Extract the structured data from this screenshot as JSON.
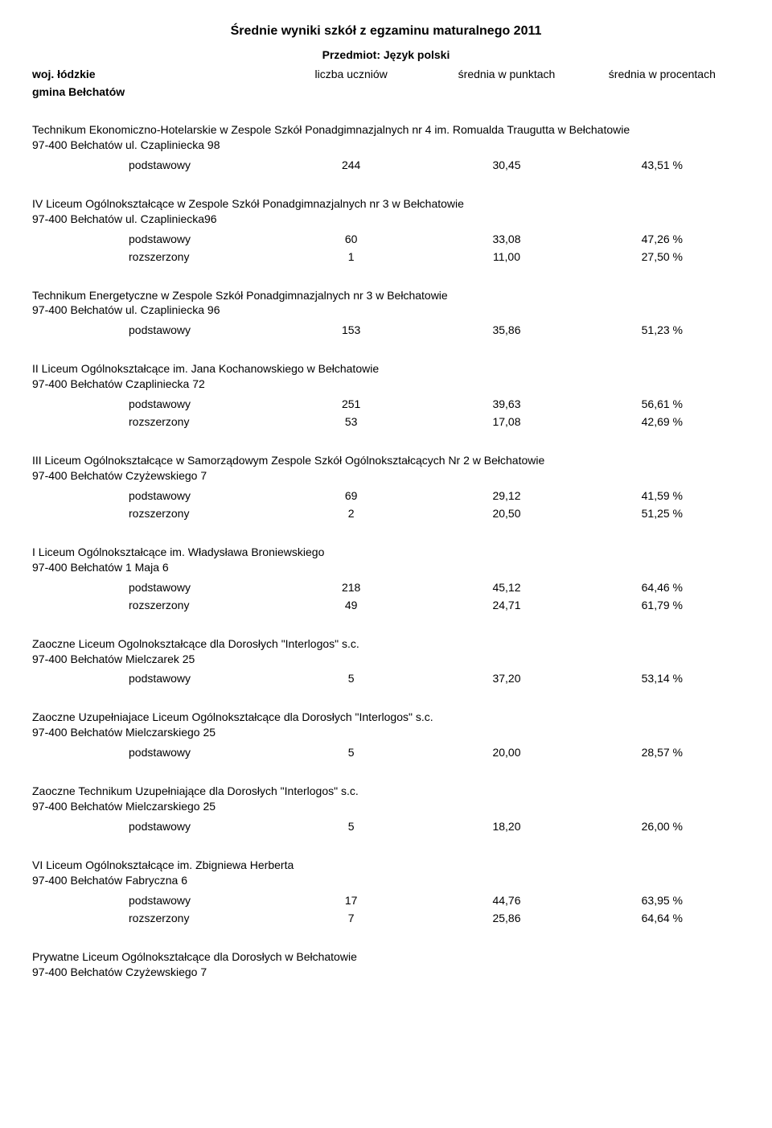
{
  "title": "Średnie wyniki szkół z egzaminu maturalnego 2011",
  "subject_label": "Przedmiot: Język polski",
  "region": "woj. łódzkie",
  "columns": {
    "students": "liczba uczniów",
    "avg_points": "średnia w punktach",
    "avg_percent": "średnia w procentach"
  },
  "gmina": "gmina Bełchatów",
  "level_labels": {
    "podstawowy": "podstawowy",
    "rozszerzony": "rozszerzony"
  },
  "schools": [
    {
      "name": "Technikum Ekonomiczno-Hotelarskie w Zespole Szkół Ponadgimnazjalnych nr 4 im. Romualda Traugutta w Bełchatowie",
      "address": "97-400 Bełchatów ul. Czapliniecka 98",
      "rows": [
        {
          "level": "podstawowy",
          "students": "244",
          "avg_points": "30,45",
          "avg_percent": "43,51 %"
        }
      ]
    },
    {
      "name": "IV Liceum Ogólnokształcące w Zespole Szkół Ponadgimnazjalnych nr 3 w Bełchatowie",
      "address": "97-400 Bełchatów ul. Czapliniecka96",
      "rows": [
        {
          "level": "podstawowy",
          "students": "60",
          "avg_points": "33,08",
          "avg_percent": "47,26 %"
        },
        {
          "level": "rozszerzony",
          "students": "1",
          "avg_points": "11,00",
          "avg_percent": "27,50 %"
        }
      ]
    },
    {
      "name": "Technikum Energetyczne w Zespole Szkół Ponadgimnazjalnych nr 3 w Bełchatowie",
      "address": "97-400 Bełchatów ul. Czapliniecka 96",
      "rows": [
        {
          "level": "podstawowy",
          "students": "153",
          "avg_points": "35,86",
          "avg_percent": "51,23 %"
        }
      ]
    },
    {
      "name": "II Liceum Ogólnokształcące im. Jana Kochanowskiego w Bełchatowie",
      "address": "97-400 Bełchatów Czapliniecka 72",
      "rows": [
        {
          "level": "podstawowy",
          "students": "251",
          "avg_points": "39,63",
          "avg_percent": "56,61 %"
        },
        {
          "level": "rozszerzony",
          "students": "53",
          "avg_points": "17,08",
          "avg_percent": "42,69 %"
        }
      ]
    },
    {
      "name": "III Liceum Ogólnokształcące w Samorządowym Zespole Szkół Ogólnokształcących Nr 2 w Bełchatowie",
      "address": "97-400 Bełchatów Czyżewskiego 7",
      "rows": [
        {
          "level": "podstawowy",
          "students": "69",
          "avg_points": "29,12",
          "avg_percent": "41,59 %"
        },
        {
          "level": "rozszerzony",
          "students": "2",
          "avg_points": "20,50",
          "avg_percent": "51,25 %"
        }
      ]
    },
    {
      "name": "I Liceum Ogólnokształcące im. Władysława  Broniewskiego",
      "address": "97-400 Bełchatów 1 Maja 6",
      "rows": [
        {
          "level": "podstawowy",
          "students": "218",
          "avg_points": "45,12",
          "avg_percent": "64,46 %"
        },
        {
          "level": "rozszerzony",
          "students": "49",
          "avg_points": "24,71",
          "avg_percent": "61,79 %"
        }
      ]
    },
    {
      "name": "Zaoczne Liceum Ogolnokształcące dla Dorosłych \"Interlogos\" s.c.",
      "address": "97-400 Bełchatów Mielczarek 25",
      "rows": [
        {
          "level": "podstawowy",
          "students": "5",
          "avg_points": "37,20",
          "avg_percent": "53,14 %"
        }
      ]
    },
    {
      "name": "Zaoczne Uzupełniajace Liceum Ogólnokształcące dla Dorosłych \"Interlogos\" s.c.",
      "address": "97-400 Bełchatów Mielczarskiego 25",
      "rows": [
        {
          "level": "podstawowy",
          "students": "5",
          "avg_points": "20,00",
          "avg_percent": "28,57 %"
        }
      ]
    },
    {
      "name": "Zaoczne Technikum Uzupełniające dla Dorosłych \"Interlogos\" s.c.",
      "address": "97-400 Bełchatów Mielczarskiego 25",
      "rows": [
        {
          "level": "podstawowy",
          "students": "5",
          "avg_points": "18,20",
          "avg_percent": "26,00 %"
        }
      ]
    },
    {
      "name": "VI Liceum Ogólnokształcące im. Zbigniewa Herberta",
      "address": "97-400 Bełchatów Fabryczna 6",
      "rows": [
        {
          "level": "podstawowy",
          "students": "17",
          "avg_points": "44,76",
          "avg_percent": "63,95 %"
        },
        {
          "level": "rozszerzony",
          "students": "7",
          "avg_points": "25,86",
          "avg_percent": "64,64 %"
        }
      ]
    },
    {
      "name": "Prywatne Liceum Ogólnokształcące dla Dorosłych w Bełchatowie",
      "address": "97-400 Bełchatów Czyżewskiego 7",
      "rows": []
    }
  ]
}
